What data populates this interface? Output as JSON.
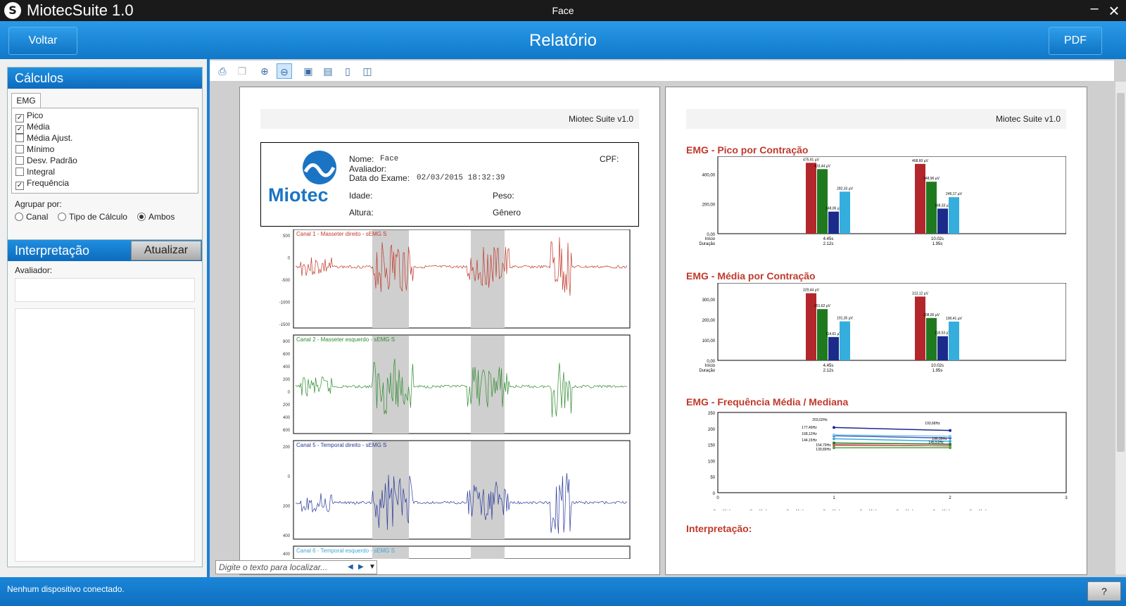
{
  "titlebar": {
    "app_name": "MiotecSuite 1.0",
    "window_title": "Face",
    "minimize": "–",
    "close": "×"
  },
  "header": {
    "back_label": "Voltar",
    "title": "Relatório",
    "pdf_label": "PDF"
  },
  "calculos": {
    "title": "Cálculos",
    "tab": "EMG",
    "options": [
      {
        "label": "Pico",
        "checked": true
      },
      {
        "label": "Média",
        "checked": true
      },
      {
        "label": "Média Ajust.",
        "checked": false
      },
      {
        "label": "Mínimo",
        "checked": false
      },
      {
        "label": "Desv. Padrão",
        "checked": false
      },
      {
        "label": "Integral",
        "checked": false
      },
      {
        "label": "Frequência",
        "checked": true
      }
    ],
    "group_label": "Agrupar por:",
    "group_options": [
      {
        "label": "Canal",
        "selected": false
      },
      {
        "label": "Tipo de Cálculo",
        "selected": false
      },
      {
        "label": "Ambos",
        "selected": true
      }
    ]
  },
  "interpretacao": {
    "title": "Interpretação",
    "update_label": "Atualizar",
    "avaliador_label": "Avaliador:"
  },
  "viewer": {
    "search_placeholder": "Digite o texto para localizar...",
    "page_header": "Miotec Suite v1.0"
  },
  "report_info": {
    "logo_text": "Miotec",
    "nome_label": "Nome:",
    "nome_value": "Face",
    "avaliador_label": "Avaliador:",
    "data_label": "Data do Exame:",
    "data_value": "02/03/2015 18:32:39",
    "cpf_label": "CPF:",
    "idade_label": "Idade:",
    "peso_label": "Peso:",
    "altura_label": "Altura:",
    "genero_label": "Gênero"
  },
  "channels": [
    {
      "title": "Canal 1 - Masseter direito - sEMG S",
      "color": "#c0392b",
      "ticks": [
        "500",
        "0",
        "-500",
        "-1000",
        "-1500"
      ]
    },
    {
      "title": "Canal 2 - Masseter esquerdo - sEMG S",
      "color": "#2e8b2e",
      "ticks": [
        "800",
        "600",
        "400",
        "200",
        "0",
        "200",
        "400",
        "600"
      ]
    },
    {
      "title": "Canal 5 - Temporal direito - sEMG S",
      "color": "#2b3a9a",
      "ticks": [
        "200",
        "0",
        "200",
        "400"
      ]
    },
    {
      "title": "Canal 6 - Temporal esquerdo - sEMG S",
      "color": "#3aa6d6",
      "ticks": [
        "400"
      ]
    }
  ],
  "chart_data": [
    {
      "type": "bar",
      "title": "EMG - Pico por Contração",
      "categories": [
        "4.45s",
        "10.02s"
      ],
      "category_sublabels": [
        "2.12s",
        "1.95s"
      ],
      "row_labels": [
        "Início",
        "Duração"
      ],
      "ylim": [
        0,
        520
      ],
      "yticks": [
        "400,00",
        "200,00",
        "0,00"
      ],
      "series": [
        {
          "color": "#b3262b",
          "values": [
            475.91,
            468.6
          ],
          "labels": [
            "475,91 µV",
            "468,60 µV"
          ]
        },
        {
          "color": "#1f7a1f",
          "values": [
            433.44,
            348.96
          ],
          "labels": [
            "433,44 µV",
            "348,96 µV"
          ]
        },
        {
          "color": "#1c2a8c",
          "values": [
            148.06,
            168.33
          ],
          "labels": [
            "148,06 µV",
            "168,33 µV"
          ]
        },
        {
          "color": "#35aede",
          "values": [
            282.33,
            245.17
          ],
          "labels": [
            "282,33 µV",
            "245,17 µV"
          ]
        }
      ]
    },
    {
      "type": "bar",
      "title": "EMG - Média por Contração",
      "categories": [
        "4.45s",
        "10.02s"
      ],
      "category_sublabels": [
        "2.12s",
        "1.95s"
      ],
      "row_labels": [
        "Início",
        "Duração"
      ],
      "ylim": [
        0,
        380
      ],
      "yticks": [
        "300,00",
        "200,00",
        "100,00",
        "0,00"
      ],
      "series": [
        {
          "color": "#b3262b",
          "values": [
            329.44,
            313.12
          ],
          "labels": [
            "329,44 µV",
            "313,12 µV"
          ]
        },
        {
          "color": "#1f7a1f",
          "values": [
            251.62,
            208.0
          ],
          "labels": [
            "251,62 µV",
            "208,00 µV"
          ]
        },
        {
          "color": "#1c2a8c",
          "values": [
            114.61,
            118.53
          ],
          "labels": [
            "114,61 µV",
            "118,53 µV"
          ]
        },
        {
          "color": "#35aede",
          "values": [
            191.35,
            190.41
          ],
          "labels": [
            "191,35 µV",
            "190,41 µV"
          ]
        }
      ]
    },
    {
      "type": "line",
      "title": "EMG - Frequência Média / Mediana",
      "x": [
        1,
        2
      ],
      "xlim": [
        0,
        3
      ],
      "xticks": [
        "0",
        "1",
        "2",
        "3"
      ],
      "ylim": [
        0,
        250
      ],
      "yticks": [
        "250",
        "200",
        "150",
        "100",
        "50",
        "0"
      ],
      "series": [
        {
          "name": "Freq. Média",
          "color": "#b3262b",
          "values": [
            148,
            146
          ]
        },
        {
          "name": "Freq. Mediana",
          "color": "#d86a6a",
          "values": [
            150,
            145.51
          ]
        },
        {
          "name": "Freq. Média",
          "color": "#1f7a1f",
          "values": [
            154.79,
            151
          ]
        },
        {
          "name": "Freq. Mediana",
          "color": "#49a849",
          "values": [
            139.89,
            140
          ]
        },
        {
          "name": "Freq. Média",
          "color": "#1c2a8c",
          "values": [
            203.02,
            193.68
          ]
        },
        {
          "name": "Freq. Mediana",
          "color": "#4a5bbf",
          "values": [
            177.49,
            170
          ]
        },
        {
          "name": "Freq. Média",
          "color": "#35aede",
          "values": [
            168.12,
            160
          ]
        },
        {
          "name": "Freq. Mediana",
          "color": "#7fcbea",
          "values": [
            180,
            176
          ]
        }
      ],
      "point_labels": [
        "203,02Hz",
        "193,68Hz",
        "177,49Hz",
        "168,12Hz",
        "144,15Hz",
        "154,79Hz",
        "139,89Hz",
        "145,51Hz",
        "190,39Hz"
      ]
    }
  ],
  "interpretacao_report_title": "Interpretação:",
  "status": {
    "text": "Nenhum dispositivo conectado.",
    "help_label": "?"
  }
}
